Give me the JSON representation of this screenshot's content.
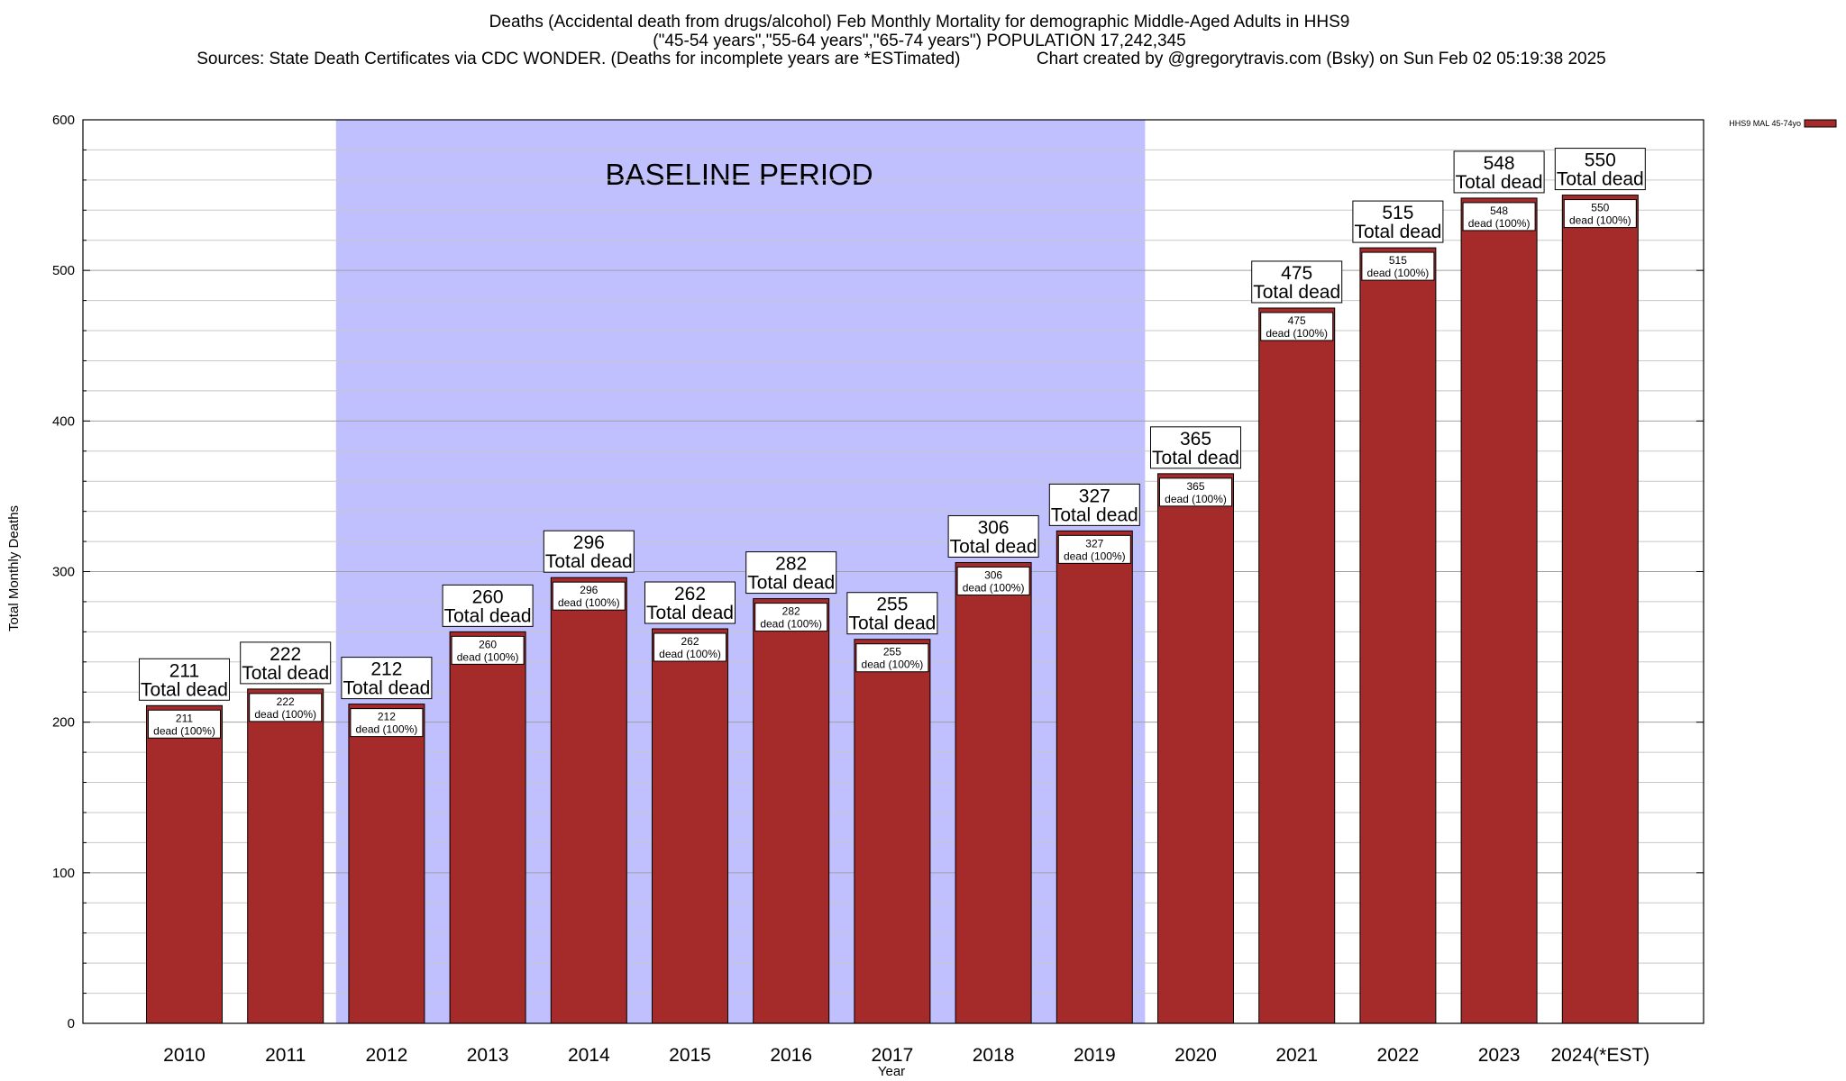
{
  "title_lines": [
    "Deaths (Accidental death from drugs/alcohol) Feb Monthly Mortality for demographic Middle-Aged Adults in HHS9",
    "(\"45-54 years\",\"55-64 years\",\"65-74 years\") POPULATION 17,242,345",
    "Sources: State Death Certificates via CDC WONDER. (Deaths for incomplete years are *ESTimated)                Chart created by @gregorytravis.com (Bsky) on Sun Feb 02 05:19:38 2025"
  ],
  "chart_data": {
    "type": "bar",
    "categories": [
      "2010",
      "2011",
      "2012",
      "2013",
      "2014",
      "2015",
      "2016",
      "2017",
      "2018",
      "2019",
      "2020",
      "2021",
      "2022",
      "2023",
      "2024(*EST)"
    ],
    "series": [
      {
        "name": "HHS9 MAL 45-74yo",
        "values": [
          211,
          222,
          212,
          260,
          296,
          262,
          282,
          255,
          306,
          327,
          365,
          475,
          515,
          548,
          550
        ],
        "color": "#a52a2a"
      }
    ],
    "xlabel": "Year",
    "ylabel": "Total Monthly Deaths",
    "ylim": [
      0,
      600
    ],
    "yticks": [
      0,
      100,
      200,
      300,
      400,
      500,
      600
    ],
    "grid": true,
    "legend_position": "top-right",
    "total_label_text": "Total dead",
    "inner_label_text": "dead (100%)",
    "baseline_period": {
      "label": "BASELINE PERIOD",
      "from_category": "2012",
      "to_category": "2019",
      "color": "#c0c0ff"
    }
  }
}
